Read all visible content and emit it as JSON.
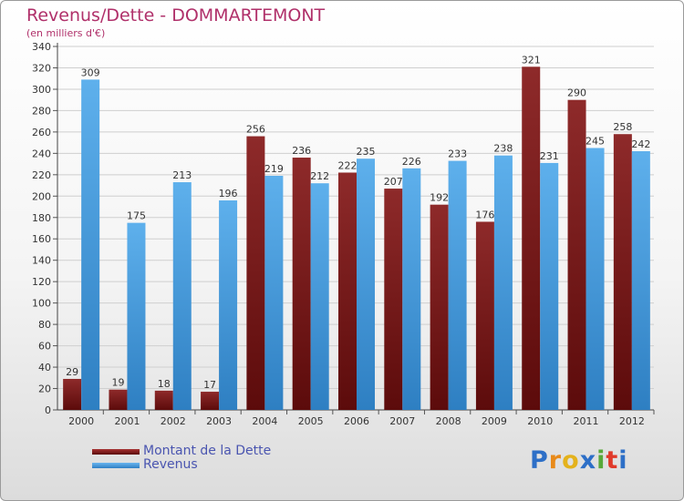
{
  "header": {
    "title": "Revenus/Dette - DOMMARTEMONT",
    "subtitle": "(en milliers d'€)"
  },
  "chart_data": {
    "type": "bar",
    "title": "Revenus/Dette - DOMMARTEMONT",
    "subtitle": "(en milliers d'€)",
    "xlabel": "",
    "ylabel": "",
    "ylim": [
      0,
      340
    ],
    "ytick_step": 20,
    "grid": true,
    "legend_position": "bottom-left",
    "categories": [
      "2000",
      "2001",
      "2002",
      "2003",
      "2004",
      "2005",
      "2006",
      "2007",
      "2008",
      "2009",
      "2010",
      "2011",
      "2012"
    ],
    "series": [
      {
        "name": "Montant de la Dette",
        "color": "#7a1818",
        "values": [
          29,
          19,
          18,
          17,
          256,
          236,
          222,
          207,
          192,
          176,
          321,
          290,
          258
        ]
      },
      {
        "name": "Revenus",
        "color": "#4a9fe0",
        "values": [
          309,
          175,
          213,
          196,
          219,
          212,
          235,
          226,
          233,
          238,
          231,
          245,
          242
        ]
      }
    ]
  },
  "logo": {
    "text": "Proxiti",
    "colors": [
      "#2d6fc7",
      "#e88a1a",
      "#e4b21c",
      "#2d6fc7",
      "#58a83a",
      "#e03a2a",
      "#2d6fc7"
    ]
  }
}
